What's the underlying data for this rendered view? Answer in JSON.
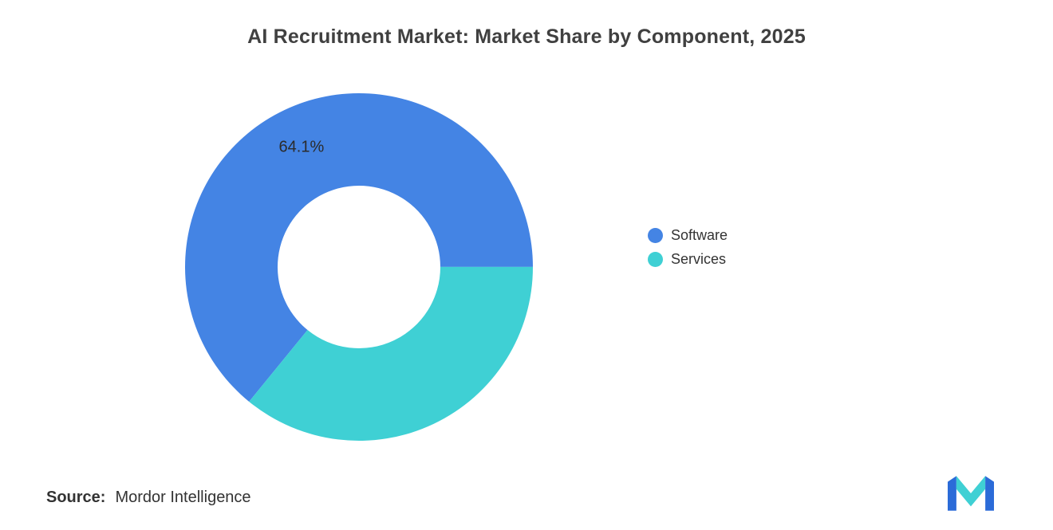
{
  "title": "AI Recruitment Market: Market Share by Component, 2025",
  "source": {
    "label": "Source:",
    "text": "Mordor Intelligence"
  },
  "brand": {
    "logo_name": "mordor-intelligence-logo",
    "logo_primary_color": "#2B6BD8",
    "logo_accent_color": "#3FD0D4"
  },
  "chart_data": {
    "type": "pie",
    "subtype": "donut",
    "title": "AI Recruitment Market: Market Share by Component, 2025",
    "series": [
      {
        "name": "Software",
        "value": 64.1,
        "color": "#4484E4",
        "data_label": "64.1%"
      },
      {
        "name": "Services",
        "value": 35.9,
        "color": "#3FD0D4",
        "data_label": ""
      }
    ],
    "legend_position": "right",
    "start_angle_deg": 129.2,
    "donut_hole_ratio": 0.47,
    "background": "#ffffff"
  }
}
